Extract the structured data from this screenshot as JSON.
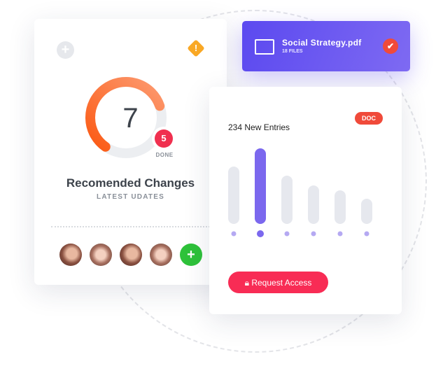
{
  "left_card": {
    "center_value": "7",
    "done_count": "5",
    "done_label": "DONE",
    "title": "Recomended Changes",
    "subtitle": "LATEST UDATES",
    "progress_fraction": 0.6,
    "accent": "#fb6a2a",
    "avatars": 4
  },
  "file_card": {
    "name": "Social Strategy.pdf",
    "count": "18 FILES",
    "color": "#5b49f0"
  },
  "chart_card": {
    "title": "234 New Entries",
    "badge": "DOC",
    "button": "Request Access",
    "chart_data": {
      "type": "bar",
      "values": [
        82,
        108,
        69,
        55,
        48,
        36
      ],
      "highlight_index": 1,
      "colors": {
        "normal": "#e6e8ee",
        "highlight": "#7b68ee",
        "dot": "#b5a9f2"
      }
    }
  }
}
